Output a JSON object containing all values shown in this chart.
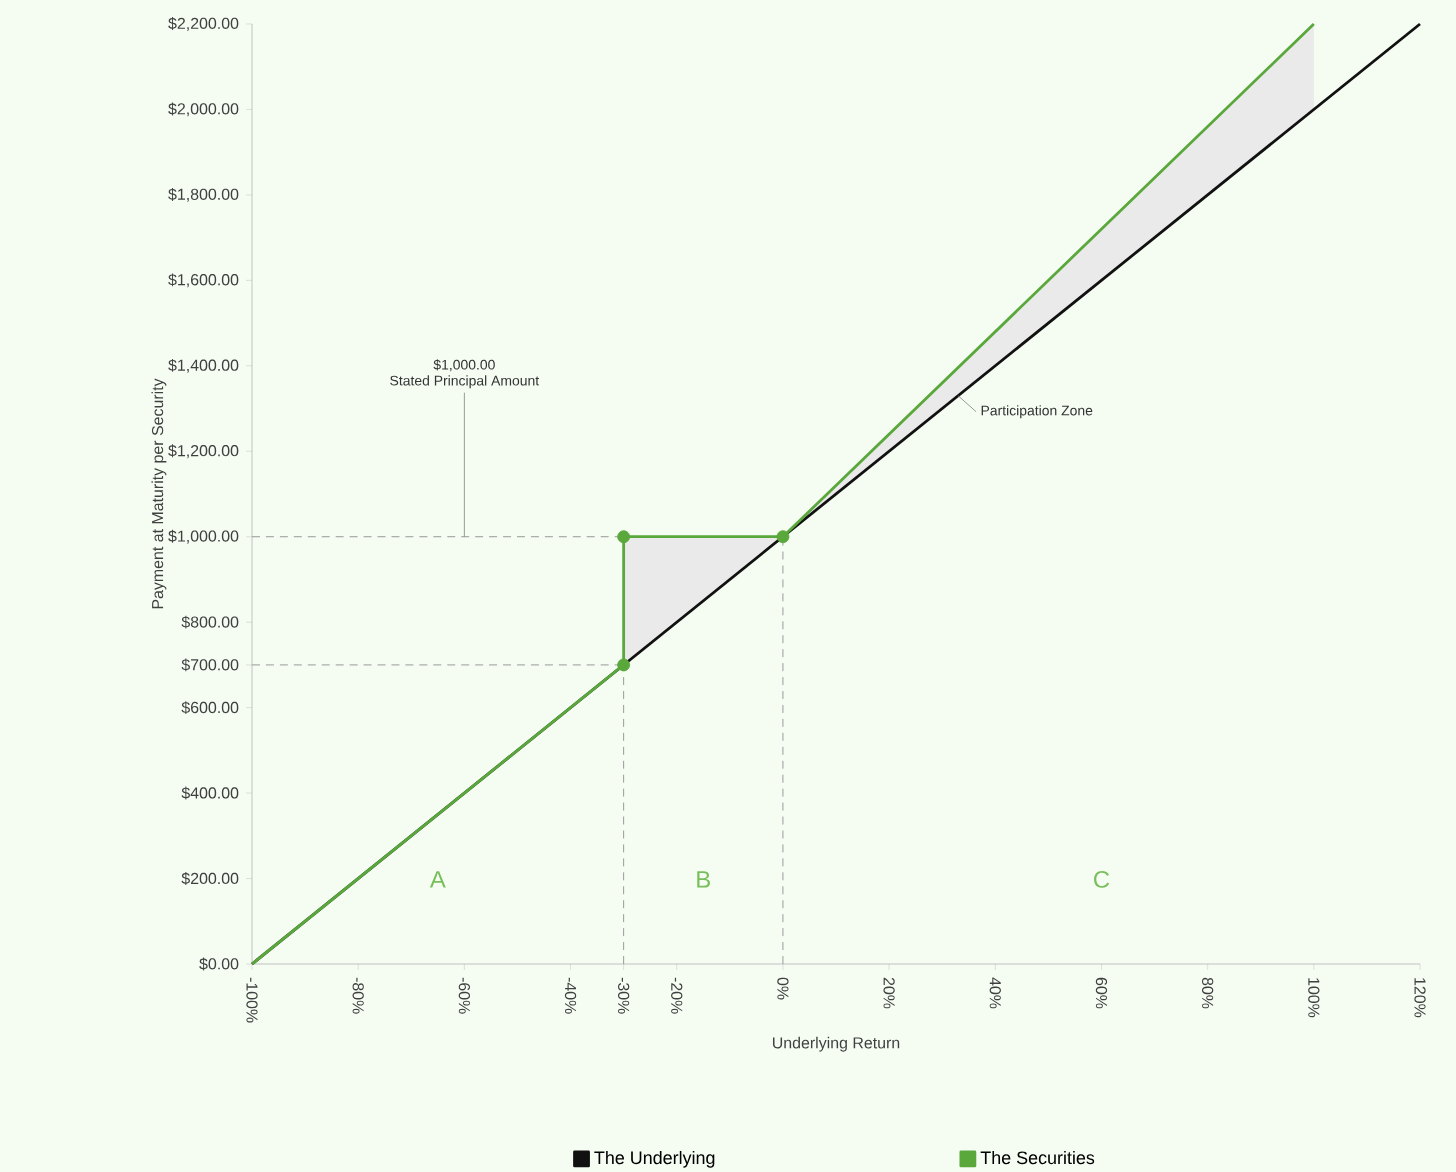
{
  "chart_data": {
    "type": "line",
    "xlabel": "Underlying Return",
    "ylabel": "Payment at Maturity per Security",
    "xlim": [
      -100,
      120
    ],
    "ylim": [
      0,
      2200
    ],
    "xticks": [
      {
        "value": -100,
        "label": "-100%"
      },
      {
        "value": -80,
        "label": "-80%"
      },
      {
        "value": -60,
        "label": "-60%"
      },
      {
        "value": -40,
        "label": "-40%"
      },
      {
        "value": -30,
        "label": "-30%"
      },
      {
        "value": -20,
        "label": "-20%"
      },
      {
        "value": 0,
        "label": "0%"
      },
      {
        "value": 20,
        "label": "20%"
      },
      {
        "value": 40,
        "label": "40%"
      },
      {
        "value": 60,
        "label": "60%"
      },
      {
        "value": 80,
        "label": "80%"
      },
      {
        "value": 100,
        "label": "100%"
      },
      {
        "value": 120,
        "label": "120%"
      }
    ],
    "yticks": [
      {
        "value": 0,
        "label": "$0.00"
      },
      {
        "value": 200,
        "label": "$200.00"
      },
      {
        "value": 400,
        "label": "$400.00"
      },
      {
        "value": 600,
        "label": "$600.00"
      },
      {
        "value": 700,
        "label": "$700.00"
      },
      {
        "value": 800,
        "label": "$800.00"
      },
      {
        "value": 1000,
        "label": "$1,000.00"
      },
      {
        "value": 1200,
        "label": "$1,200.00"
      },
      {
        "value": 1400,
        "label": "$1,400.00"
      },
      {
        "value": 1600,
        "label": "$1,600.00"
      },
      {
        "value": 1800,
        "label": "$1,800.00"
      },
      {
        "value": 2000,
        "label": "$2,000.00"
      },
      {
        "value": 2200,
        "label": "$2,200.00"
      }
    ],
    "grid": false,
    "legend": "bottom",
    "series": [
      {
        "color": "#999999",
        "line_style": "dashed",
        "x": [
          -100,
          -30
        ],
        "values": [
          1000,
          1000
        ]
      },
      {
        "color": "#999999",
        "line_style": "dashed",
        "x": [
          -100,
          -30
        ],
        "values": [
          700,
          700
        ]
      },
      {
        "color": "#999999",
        "line_style": "dashed",
        "x": [
          -30,
          -30
        ],
        "values": [
          0,
          1000
        ]
      },
      {
        "color": "#999999",
        "line_style": "dashed",
        "x": [
          0,
          0
        ],
        "values": [
          0,
          1000
        ]
      },
      {
        "name": "The Underlying",
        "color": "#111111",
        "x": [
          -100,
          120
        ],
        "values": [
          0,
          2200
        ]
      },
      {
        "name": "The Securities",
        "color": "#5aa83c",
        "x": [
          -100,
          -30,
          -30,
          0,
          100
        ],
        "values": [
          0,
          700,
          1000,
          1000,
          2200
        ],
        "lower": [
          0,
          700,
          700,
          1000,
          2000
        ],
        "upper": [
          0,
          700,
          1000,
          1000,
          2200
        ]
      },
      {
        "type": "scatter",
        "color": "#5aa83c",
        "marker": "circle",
        "x": [
          -30,
          0,
          -30
        ],
        "values": [
          1000,
          1000,
          700
        ]
      }
    ],
    "annotations": [
      "$1,000.00",
      {
        "text": "Stated Principal Amount",
        "x": -60,
        "y": 1000
      },
      {
        "text": "Participation Zone",
        "x": 33,
        "y": 1330
      },
      "A",
      "B",
      "C"
    ]
  }
}
